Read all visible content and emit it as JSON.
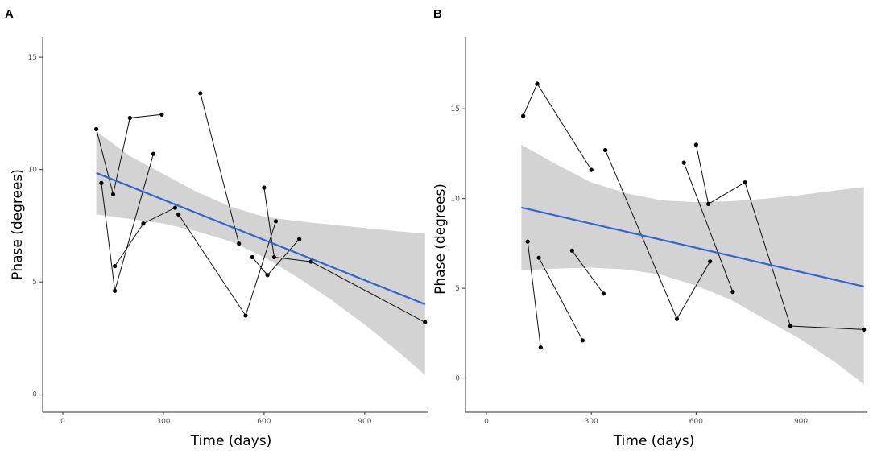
{
  "chart_data": [
    {
      "panel": "A",
      "type": "line",
      "xlabel": "Time (days)",
      "ylabel": "Phase (degrees)",
      "xlim": [
        -60,
        1090
      ],
      "ylim": [
        -0.8,
        15.9
      ],
      "xticks": [
        0,
        300,
        600,
        900
      ],
      "yticks": [
        0,
        5,
        10,
        15
      ],
      "grid": false,
      "fit": {
        "x": [
          100,
          1080
        ],
        "y": [
          9.85,
          4.0
        ]
      },
      "confidence_band": {
        "x": [
          100,
          200,
          300,
          400,
          500,
          600,
          700,
          800,
          900,
          1000,
          1080
        ],
        "upper": [
          11.7,
          10.6,
          9.8,
          9.0,
          8.35,
          7.9,
          7.7,
          7.55,
          7.4,
          7.25,
          7.15
        ],
        "lower": [
          8.0,
          7.8,
          7.6,
          7.25,
          6.8,
          6.1,
          5.2,
          4.2,
          3.1,
          1.9,
          0.85
        ]
      },
      "series": [
        {
          "x": [
            100,
            150,
            200,
            295
          ],
          "y": [
            11.8,
            8.9,
            12.3,
            12.45
          ]
        },
        {
          "x": [
            115,
            155,
            270
          ],
          "y": [
            9.4,
            4.6,
            10.7
          ]
        },
        {
          "x": [
            155,
            240,
            335
          ],
          "y": [
            5.7,
            7.6,
            8.3
          ]
        },
        {
          "x": [
            410,
            525
          ],
          "y": [
            13.4,
            6.7
          ]
        },
        {
          "x": [
            345,
            545,
            635
          ],
          "y": [
            8.0,
            3.5,
            7.7
          ]
        },
        {
          "x": [
            600,
            630,
            740,
            1080
          ],
          "y": [
            9.2,
            6.1,
            5.9,
            3.2
          ]
        },
        {
          "x": [
            565,
            610,
            705
          ],
          "y": [
            6.1,
            5.3,
            6.9
          ]
        }
      ]
    },
    {
      "panel": "B",
      "type": "line",
      "xlabel": "Time (days)",
      "ylabel": "Phase (degrees)",
      "xlim": [
        -60,
        1090
      ],
      "ylim": [
        -1.9,
        19.0
      ],
      "xticks": [
        0,
        300,
        600,
        900
      ],
      "yticks": [
        0,
        5,
        10,
        15
      ],
      "grid": false,
      "fit": {
        "x": [
          100,
          1080
        ],
        "y": [
          9.5,
          5.1
        ]
      },
      "confidence_band": {
        "x": [
          100,
          200,
          300,
          400,
          500,
          600,
          700,
          800,
          900,
          1000,
          1080
        ],
        "upper": [
          13.0,
          11.9,
          10.9,
          10.3,
          9.9,
          9.8,
          9.85,
          10.0,
          10.2,
          10.45,
          10.65
        ],
        "lower": [
          6.0,
          6.1,
          6.15,
          6.05,
          5.75,
          5.15,
          4.35,
          3.25,
          2.15,
          0.85,
          -0.35
        ]
      },
      "series": [
        {
          "x": [
            105,
            145,
            300
          ],
          "y": [
            14.6,
            16.4,
            11.6
          ]
        },
        {
          "x": [
            118,
            155
          ],
          "y": [
            7.6,
            1.7
          ]
        },
        {
          "x": [
            150,
            275
          ],
          "y": [
            6.7,
            2.1
          ]
        },
        {
          "x": [
            245,
            335
          ],
          "y": [
            7.1,
            4.7
          ]
        },
        {
          "x": [
            340,
            545,
            640
          ],
          "y": [
            12.7,
            3.3,
            6.5
          ]
        },
        {
          "x": [
            565,
            705
          ],
          "y": [
            12.0,
            4.8
          ]
        },
        {
          "x": [
            600,
            635,
            740,
            870,
            1080
          ],
          "y": [
            13.0,
            9.7,
            10.9,
            2.9,
            2.7
          ]
        }
      ]
    }
  ]
}
